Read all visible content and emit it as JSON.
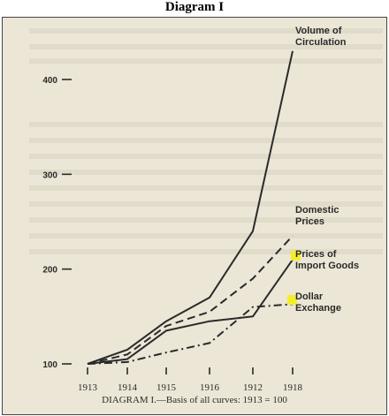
{
  "header": {
    "title": "Diagram I"
  },
  "chart_data": {
    "type": "line",
    "title": "",
    "caption": "DIAGRAM I.—Basis of all curves: 1913 = 100",
    "categories": [
      "1913",
      "1914",
      "1915",
      "1916",
      "1912",
      "1918"
    ],
    "yticks": [
      100,
      200,
      300,
      400
    ],
    "ylim": [
      100,
      420
    ],
    "series": [
      {
        "name": "Volume of Circulation",
        "style": "solid",
        "values": [
          100,
          115,
          145,
          170,
          240,
          430
        ]
      },
      {
        "name": "Domestic Prices",
        "style": "dashed",
        "values": [
          100,
          110,
          140,
          155,
          190,
          235
        ]
      },
      {
        "name": "Prices of Import Goods",
        "style": "solid",
        "values": [
          100,
          105,
          135,
          145,
          150,
          210
        ]
      },
      {
        "name": "Dollar Exchange",
        "style": "dashdot",
        "values": [
          100,
          102,
          112,
          122,
          160,
          163
        ]
      }
    ],
    "highlight_color": "#f4ee2a",
    "line_color": "#2a2a2a",
    "grid": false
  }
}
